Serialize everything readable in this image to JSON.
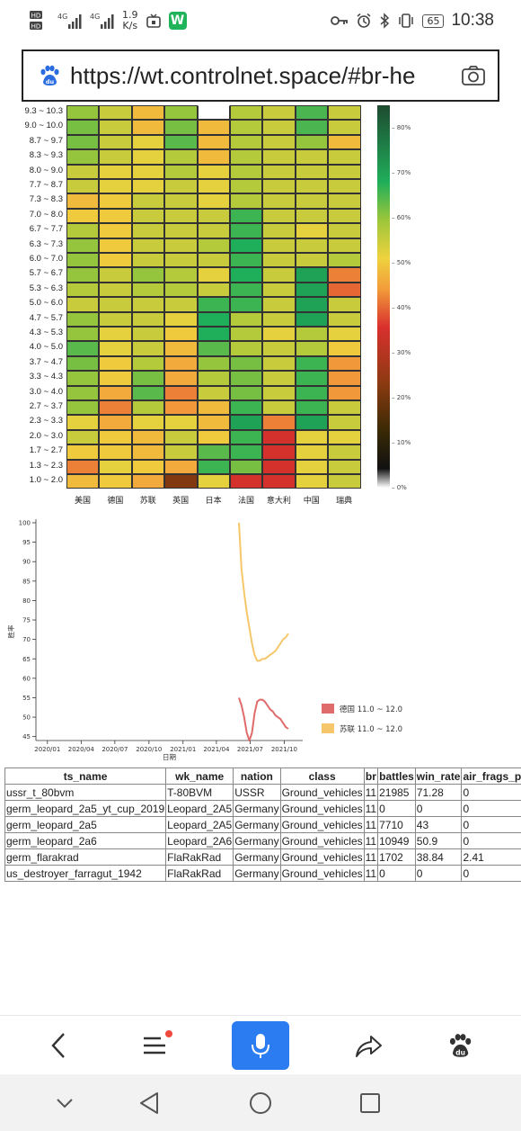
{
  "status_bar": {
    "left_icons": [
      "hd-icon",
      "signal-4g-icon",
      "signal-4g-icon",
      "speed-icon",
      "tv-icon",
      "w-app-icon"
    ],
    "speed_value": "1.9",
    "speed_unit": "K/s",
    "w_badge": "W",
    "right_icons": [
      "key-icon",
      "alarm-icon",
      "bluetooth-icon",
      "vibrate-icon"
    ],
    "battery": "65",
    "time": "10:38"
  },
  "browser": {
    "url": "https://wt.controlnet.space/#br-he",
    "logo_icon": "baidu-paw-icon",
    "camera_icon": "camera-icon"
  },
  "heatmap_colorbar_ticks": [
    "80%",
    "70%",
    "60%",
    "50%",
    "40%",
    "30%",
    "20%",
    "10%",
    "0%"
  ],
  "chart_data": [
    {
      "type": "heatmap",
      "rows": [
        "9.3 ~ 10.3",
        "9.0 ~ 10.0",
        "8.7 ~ 9.7",
        "8.3 ~ 9.3",
        "8.0 ~ 9.0",
        "7.7 ~ 8.7",
        "7.3 ~ 8.3",
        "7.0 ~ 8.0",
        "6.7 ~ 7.7",
        "6.3 ~ 7.3",
        "6.0 ~ 7.0",
        "5.7 ~ 6.7",
        "5.3 ~ 6.3",
        "5.0 ~ 6.0",
        "4.7 ~ 5.7",
        "4.3 ~ 5.3",
        "4.0 ~ 5.0",
        "3.7 ~ 4.7",
        "3.3 ~ 4.3",
        "3.0 ~ 4.0",
        "2.7 ~ 3.7",
        "2.3 ~ 3.3",
        "2.0 ~ 3.0",
        "1.7 ~ 2.7",
        "1.3 ~ 2.3",
        "1.0 ~ 2.0"
      ],
      "columns": [
        "美国",
        "德国",
        "苏联",
        "英国",
        "日本",
        "法国",
        "意大利",
        "中国",
        "瑞典"
      ],
      "colorscale_range": [
        0,
        85
      ],
      "values": [
        [
          60,
          55,
          48,
          60,
          null,
          57,
          55,
          65,
          55
        ],
        [
          62,
          55,
          48,
          62,
          48,
          57,
          55,
          65,
          55
        ],
        [
          62,
          55,
          52,
          64,
          48,
          57,
          55,
          60,
          48
        ],
        [
          60,
          55,
          52,
          57,
          48,
          57,
          55,
          55,
          55
        ],
        [
          55,
          52,
          52,
          57,
          52,
          57,
          55,
          55,
          55
        ],
        [
          55,
          52,
          52,
          55,
          52,
          57,
          55,
          55,
          55
        ],
        [
          48,
          50,
          55,
          55,
          52,
          57,
          55,
          55,
          55
        ],
        [
          50,
          50,
          55,
          55,
          55,
          66,
          55,
          55,
          55
        ],
        [
          57,
          50,
          55,
          55,
          55,
          66,
          55,
          52,
          55
        ],
        [
          60,
          50,
          55,
          55,
          57,
          68,
          55,
          55,
          55
        ],
        [
          60,
          50,
          55,
          55,
          55,
          66,
          55,
          55,
          57
        ],
        [
          60,
          55,
          60,
          57,
          52,
          68,
          55,
          70,
          42
        ],
        [
          57,
          55,
          57,
          57,
          55,
          66,
          55,
          70,
          40
        ],
        [
          55,
          55,
          55,
          55,
          66,
          66,
          55,
          70,
          55
        ],
        [
          60,
          55,
          55,
          52,
          68,
          57,
          55,
          70,
          55
        ],
        [
          60,
          52,
          55,
          50,
          68,
          57,
          52,
          57,
          52
        ],
        [
          64,
          52,
          55,
          48,
          64,
          57,
          55,
          57,
          50
        ],
        [
          62,
          50,
          57,
          46,
          60,
          62,
          55,
          66,
          44
        ],
        [
          60,
          50,
          62,
          46,
          57,
          62,
          55,
          66,
          44
        ],
        [
          60,
          46,
          64,
          42,
          55,
          62,
          55,
          66,
          44
        ],
        [
          60,
          42,
          57,
          44,
          48,
          66,
          55,
          66,
          55
        ],
        [
          52,
          46,
          52,
          52,
          48,
          70,
          42,
          70,
          55
        ],
        [
          55,
          50,
          48,
          55,
          50,
          66,
          35,
          52,
          52
        ],
        [
          50,
          50,
          48,
          55,
          64,
          66,
          35,
          52,
          55
        ],
        [
          42,
          52,
          50,
          46,
          66,
          62,
          35,
          52,
          55
        ],
        [
          48,
          50,
          46,
          22,
          52,
          35,
          35,
          52,
          55
        ]
      ]
    },
    {
      "type": "line",
      "xlabel": "日期",
      "ylabel": "胜率",
      "ylim": [
        44,
        100
      ],
      "y_ticks": [
        45,
        50,
        55,
        60,
        65,
        70,
        75,
        80,
        85,
        90,
        95,
        100
      ],
      "x_tick_labels": [
        "2020/01",
        "2020/04",
        "2020/07",
        "2020/10",
        "2021/01",
        "2021/04",
        "2021/07",
        "2021/10"
      ],
      "legend_position": "right",
      "series": [
        {
          "name": "德国 11.0 ~ 12.0",
          "color": "#e06b6b",
          "points": [
            [
              "2021-06-01",
              55.0
            ],
            [
              "2021-06-08",
              53.0
            ],
            [
              "2021-06-15",
              50.0
            ],
            [
              "2021-06-22",
              46.0
            ],
            [
              "2021-06-29",
              44.0
            ],
            [
              "2021-07-06",
              46.0
            ],
            [
              "2021-07-13",
              51.0
            ],
            [
              "2021-07-20",
              54.0
            ],
            [
              "2021-07-27",
              54.5
            ],
            [
              "2021-08-03",
              54.5
            ],
            [
              "2021-08-10",
              54.0
            ],
            [
              "2021-08-17",
              53.0
            ],
            [
              "2021-08-24",
              52.0
            ],
            [
              "2021-08-31",
              51.5
            ],
            [
              "2021-09-07",
              50.5
            ],
            [
              "2021-09-14",
              50.0
            ],
            [
              "2021-09-21",
              49.5
            ],
            [
              "2021-09-28",
              48.5
            ],
            [
              "2021-10-05",
              47.5
            ],
            [
              "2021-10-12",
              47.0
            ]
          ]
        },
        {
          "name": "苏联 11.0 ~ 12.0",
          "color": "#f5c76a",
          "points": [
            [
              "2021-06-01",
              100.0
            ],
            [
              "2021-06-08",
              88.0
            ],
            [
              "2021-06-15",
              82.0
            ],
            [
              "2021-06-22",
              77.0
            ],
            [
              "2021-06-29",
              73.0
            ],
            [
              "2021-07-06",
              69.0
            ],
            [
              "2021-07-13",
              66.0
            ],
            [
              "2021-07-20",
              64.5
            ],
            [
              "2021-07-27",
              64.5
            ],
            [
              "2021-08-03",
              65.0
            ],
            [
              "2021-08-10",
              65.0
            ],
            [
              "2021-08-17",
              65.5
            ],
            [
              "2021-08-24",
              66.0
            ],
            [
              "2021-08-31",
              66.5
            ],
            [
              "2021-09-07",
              67.0
            ],
            [
              "2021-09-14",
              68.0
            ],
            [
              "2021-09-21",
              69.0
            ],
            [
              "2021-09-28",
              70.0
            ],
            [
              "2021-10-05",
              70.5
            ],
            [
              "2021-10-12",
              71.5
            ]
          ]
        }
      ]
    }
  ],
  "table": {
    "headers": [
      "ts_name",
      "wk_name",
      "nation",
      "class",
      "br",
      "battles",
      "win_rate",
      "air_frags_per_batt"
    ],
    "rows": [
      [
        "ussr_t_80bvm",
        "T-80BVM",
        "USSR",
        "Ground_vehicles",
        "11",
        "21985",
        "71.28",
        "0"
      ],
      [
        "germ_leopard_2a5_yt_cup_2019",
        "Leopard_2A5",
        "Germany",
        "Ground_vehicles",
        "11",
        "0",
        "0",
        "0"
      ],
      [
        "germ_leopard_2a5",
        "Leopard_2A5",
        "Germany",
        "Ground_vehicles",
        "11",
        "7710",
        "43",
        "0"
      ],
      [
        "germ_leopard_2a6",
        "Leopard_2A6",
        "Germany",
        "Ground_vehicles",
        "11",
        "10949",
        "50.9",
        "0"
      ],
      [
        "germ_flarakrad",
        "FlaRakRad",
        "Germany",
        "Ground_vehicles",
        "11",
        "1702",
        "38.84",
        "2.41"
      ],
      [
        "us_destroyer_farragut_1942",
        "FlaRakRad",
        "Germany",
        "Ground_vehicles",
        "11",
        "0",
        "0",
        "0"
      ]
    ]
  },
  "bottom_nav": {
    "icons": [
      "back-icon",
      "menu-icon",
      "microphone-icon",
      "share-icon",
      "baidu-paw-icon"
    ],
    "accent": "#2b7cf0",
    "notification_dot": "#f04a3e"
  },
  "system_nav": {
    "icons": [
      "collapse-icon",
      "back-triangle-icon",
      "home-circle-icon",
      "recents-square-icon"
    ]
  }
}
